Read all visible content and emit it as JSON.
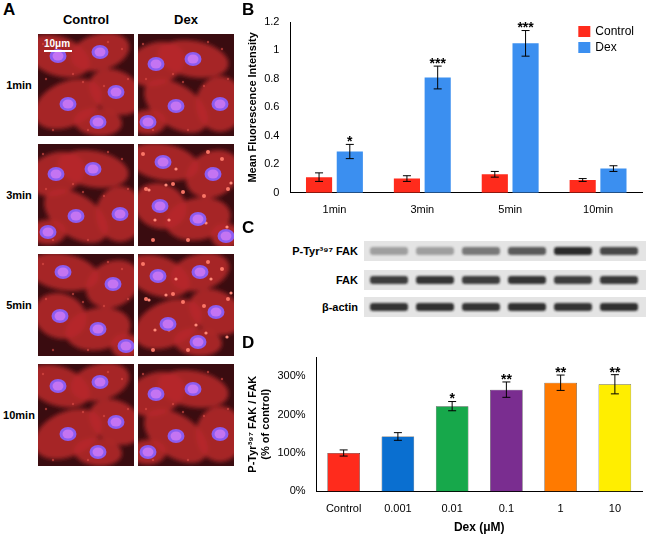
{
  "micrographs": {
    "panel": "A",
    "columns": [
      "Control",
      "Dex"
    ],
    "rows": [
      "1min",
      "3min",
      "5min",
      "10min"
    ],
    "scale_bar": "10μm"
  },
  "chart_data": [
    {
      "panel": "B",
      "type": "bar",
      "ylabel": "Mean Fluorescence Intensity",
      "categories": [
        "1min",
        "3min",
        "5min",
        "10min"
      ],
      "series": [
        {
          "name": "Control",
          "color": "#ff2b1c",
          "values": [
            0.11,
            0.1,
            0.13,
            0.09
          ],
          "errors": [
            0.03,
            0.02,
            0.02,
            0.01
          ]
        },
        {
          "name": "Dex",
          "color": "#3b8ff0",
          "values": [
            0.29,
            0.81,
            1.05,
            0.17
          ],
          "errors": [
            0.05,
            0.08,
            0.09,
            0.02
          ],
          "annotations": [
            "*",
            "***",
            "***",
            null
          ]
        }
      ],
      "ylim": [
        0,
        1.2
      ],
      "yticks": [
        0,
        0.2,
        0.4,
        0.6,
        0.8,
        1,
        1.2
      ],
      "grid": false,
      "legend": "upper right"
    },
    {
      "panel": "D",
      "type": "bar",
      "xlabel": "Dex (μM)",
      "ylabel": [
        "P-Tyr³⁹⁷ FAK / FAK",
        "(% of control)"
      ],
      "categories": [
        "Control",
        "0.001",
        "0.01",
        "0.1",
        "1",
        "10"
      ],
      "values": [
        100,
        143,
        222,
        265,
        283,
        279
      ],
      "errors": [
        8,
        10,
        12,
        20,
        20,
        25
      ],
      "annotations": [
        null,
        null,
        "*",
        "**",
        "**",
        "**"
      ],
      "colors": [
        "#ff2b1c",
        "#0a6fd0",
        "#17a84b",
        "#7a2d90",
        "#ff7a00",
        "#ffee00"
      ],
      "ylim": [
        0,
        350
      ],
      "yticks": [
        {
          "value": 0,
          "label": "0%"
        },
        {
          "value": 100,
          "label": "100%"
        },
        {
          "value": 200,
          "label": "200%"
        },
        {
          "value": 300,
          "label": "300%"
        }
      ],
      "grid": false
    }
  ],
  "blot": {
    "panel": "C",
    "rows": [
      "P-Tyr³⁹⁷ FAK",
      "FAK",
      "β-actin"
    ]
  }
}
